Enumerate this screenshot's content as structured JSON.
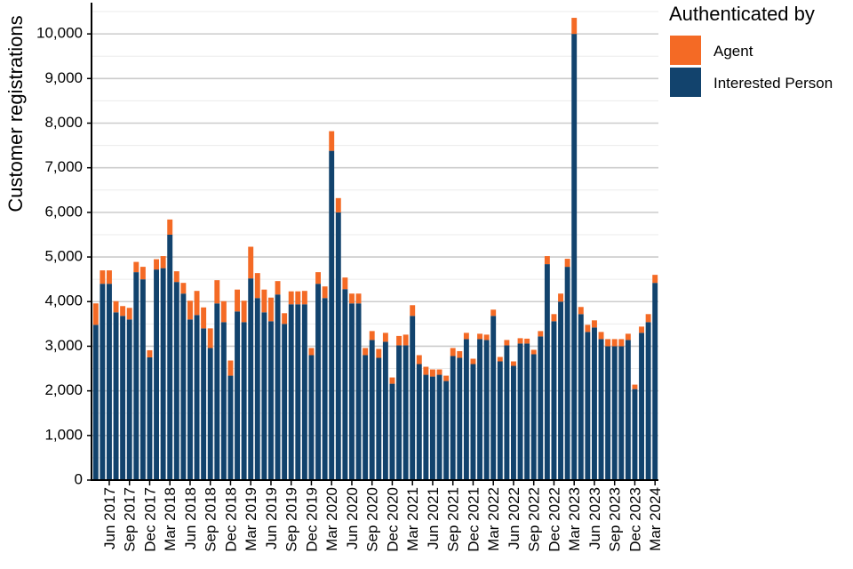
{
  "chart_data": {
    "type": "bar",
    "stacked": true,
    "title": "",
    "xlabel": "",
    "ylabel": "Customer registrations",
    "ylim": [
      0,
      10700
    ],
    "y_ticks": [
      0,
      1000,
      2000,
      3000,
      4000,
      5000,
      6000,
      7000,
      8000,
      9000,
      10000
    ],
    "y_tick_labels": [
      "0",
      "1,000",
      "2,000",
      "3,000",
      "4,000",
      "5,000",
      "6,000",
      "7,000",
      "8,000",
      "9,000",
      "10,000"
    ],
    "grid": true,
    "legend": {
      "title": "Authenticated by",
      "position": "right"
    },
    "colors": {
      "Agent": "#f46a25",
      "Interested Person": "#12436d"
    },
    "x_tick_labels": [
      {
        "index": 2,
        "label": "Jun 2017"
      },
      {
        "index": 5,
        "label": "Sep 2017"
      },
      {
        "index": 8,
        "label": "Dec 2017"
      },
      {
        "index": 11,
        "label": "Mar 2018"
      },
      {
        "index": 14,
        "label": "Jun 2018"
      },
      {
        "index": 17,
        "label": "Sep 2018"
      },
      {
        "index": 20,
        "label": "Dec 2018"
      },
      {
        "index": 23,
        "label": "Mar 2019"
      },
      {
        "index": 26,
        "label": "Jun 2019"
      },
      {
        "index": 29,
        "label": "Sep 2019"
      },
      {
        "index": 32,
        "label": "Dec 2019"
      },
      {
        "index": 35,
        "label": "Mar 2020"
      },
      {
        "index": 38,
        "label": "Jun 2020"
      },
      {
        "index": 41,
        "label": "Sep 2020"
      },
      {
        "index": 44,
        "label": "Dec 2020"
      },
      {
        "index": 47,
        "label": "Mar 2021"
      },
      {
        "index": 50,
        "label": "Jun 2021"
      },
      {
        "index": 53,
        "label": "Sep 2021"
      },
      {
        "index": 56,
        "label": "Dec 2021"
      },
      {
        "index": 59,
        "label": "Mar 2022"
      },
      {
        "index": 62,
        "label": "Jun 2022"
      },
      {
        "index": 65,
        "label": "Sep 2022"
      },
      {
        "index": 68,
        "label": "Dec 2022"
      },
      {
        "index": 71,
        "label": "Mar 2023"
      },
      {
        "index": 74,
        "label": "Jun 2023"
      },
      {
        "index": 77,
        "label": "Sep 2023"
      },
      {
        "index": 80,
        "label": "Dec 2023"
      },
      {
        "index": 83,
        "label": "Mar 2024"
      }
    ],
    "series": [
      {
        "name": "Interested Person",
        "values": [
          3480,
          4400,
          4400,
          3760,
          3680,
          3600,
          4660,
          4500,
          2750,
          4720,
          4750,
          5500,
          4440,
          4180,
          3600,
          3700,
          3400,
          2960,
          3960,
          3540,
          2340,
          3780,
          3540,
          4520,
          4080,
          3760,
          3560,
          4160,
          3500,
          3940,
          3940,
          3940,
          2800,
          4400,
          4080,
          7380,
          6000,
          4280,
          3960,
          3960,
          2800,
          3140,
          2740,
          3100,
          2160,
          3020,
          3020,
          3680,
          2600,
          2360,
          2320,
          2360,
          2220,
          2780,
          2740,
          3160,
          2600,
          3160,
          3140,
          3680,
          2660,
          3020,
          2560,
          3060,
          3060,
          2820,
          3220,
          4840,
          3560,
          4000,
          4780,
          10000,
          3720,
          3320,
          3420,
          3160,
          3000,
          3000,
          3000,
          3140,
          2040,
          3300,
          3540,
          4420
        ]
      },
      {
        "name": "Agent",
        "values": [
          480,
          300,
          300,
          250,
          220,
          260,
          230,
          280,
          160,
          230,
          270,
          340,
          240,
          240,
          420,
          540,
          470,
          440,
          520,
          470,
          340,
          490,
          480,
          710,
          560,
          510,
          530,
          300,
          240,
          290,
          290,
          300,
          160,
          260,
          260,
          440,
          320,
          260,
          220,
          220,
          160,
          200,
          200,
          200,
          140,
          210,
          240,
          240,
          200,
          180,
          160,
          120,
          120,
          180,
          150,
          140,
          120,
          120,
          120,
          140,
          100,
          120,
          100,
          120,
          110,
          100,
          120,
          180,
          160,
          180,
          180,
          360,
          160,
          160,
          160,
          160,
          160,
          160,
          160,
          140,
          100,
          140,
          180,
          180
        ]
      }
    ]
  }
}
